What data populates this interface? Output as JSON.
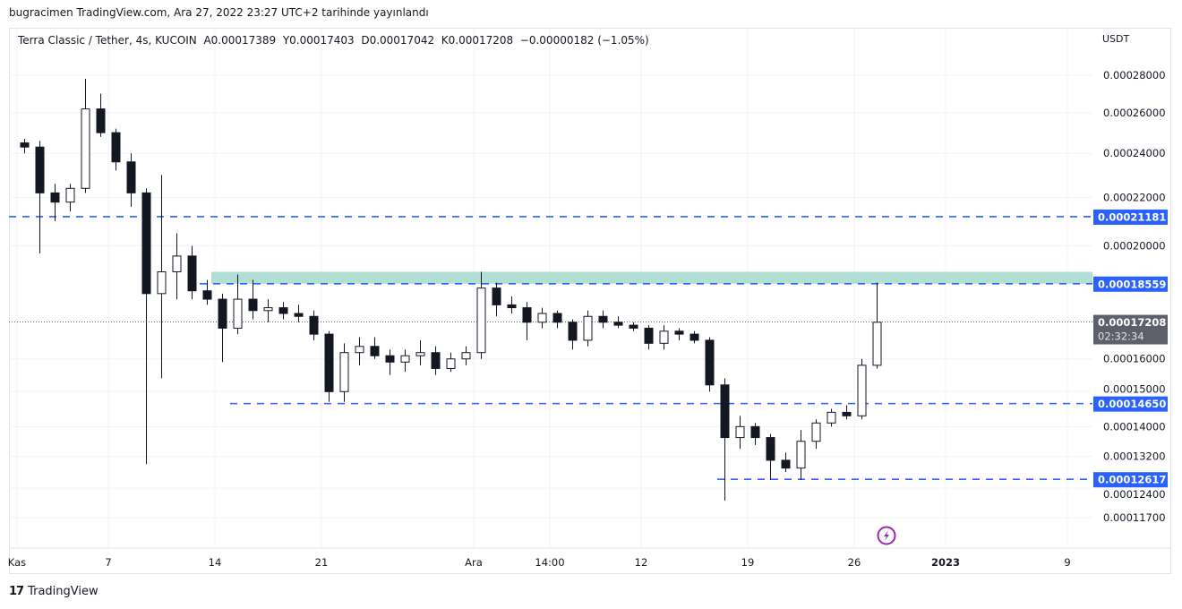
{
  "publish_note": "bugracimen TradingView.com, Ara 27, 2022 23:27 UTC+2 tarihinde yayınlandı",
  "legend": {
    "symbol": "Terra Classic / Tether, 4s, KUCOIN",
    "open": "A0.00017389",
    "high": "Y0.00017403",
    "low": "D0.00017042",
    "close": "K0.00017208",
    "change": "−0.00000182 (−1.05%)"
  },
  "footer": {
    "brand": "TradingView"
  },
  "colors": {
    "line": "#2962ff",
    "zone": "#b2dfd4",
    "price_tag": "#5d606b",
    "candle": "#131722",
    "alert_icon": "#9c27b0"
  },
  "chart_data": {
    "type": "candlestick",
    "scale": "log",
    "unit": "USDT",
    "ylim": [
      0.000113,
      0.000315
    ],
    "grid": true,
    "y_ticks": [
      "0.00028000",
      "0.00026000",
      "0.00024000",
      "0.00022000",
      "0.00020000",
      "0.00016000",
      "0.00015000",
      "0.00014000",
      "0.00013200",
      "0.00012400",
      "0.00011700"
    ],
    "x_ticks": [
      {
        "label": "Kas",
        "date": "2022-11-01"
      },
      {
        "label": "7",
        "date": "2022-11-07"
      },
      {
        "label": "14",
        "date": "2022-11-14"
      },
      {
        "label": "21",
        "date": "2022-11-21"
      },
      {
        "label": "Ara",
        "date": "2022-12-01"
      },
      {
        "label": "14:00",
        "date": "2022-12-06"
      },
      {
        "label": "12",
        "date": "2022-12-12"
      },
      {
        "label": "19",
        "date": "2022-12-19"
      },
      {
        "label": "26",
        "date": "2022-12-26"
      },
      {
        "label": "2023",
        "date": "2023-01-01"
      },
      {
        "label": "9",
        "date": "2023-01-09"
      }
    ],
    "candles_start": "2022-11-01",
    "candles_ohlc": [
      [
        0.000245,
        0.000247,
        0.00024,
        0.000243
      ],
      [
        0.000243,
        0.000246,
        0.000197,
        0.000222
      ],
      [
        0.000222,
        0.000226,
        0.00021,
        0.000218
      ],
      [
        0.000218,
        0.000226,
        0.000214,
        0.000224
      ],
      [
        0.000224,
        0.000278,
        0.000222,
        0.000262
      ],
      [
        0.000262,
        0.00027,
        0.000248,
        0.00025
      ],
      [
        0.00025,
        0.000252,
        0.000232,
        0.000236
      ],
      [
        0.000236,
        0.00024,
        0.000216,
        0.000222
      ],
      [
        0.000222,
        0.000224,
        0.00013,
        0.000182
      ],
      [
        0.000182,
        0.00023,
        0.000154,
        0.00019
      ],
      [
        0.00019,
        0.000205,
        0.00018,
        0.000196
      ],
      [
        0.000196,
        0.0002,
        0.00018,
        0.000183
      ],
      [
        0.000183,
        0.000187,
        0.000178,
        0.00018
      ],
      [
        0.00018,
        0.000182,
        0.000159,
        0.00017
      ],
      [
        0.00017,
        0.000189,
        0.000168,
        0.00018
      ],
      [
        0.00018,
        0.000187,
        0.000173,
        0.000176
      ],
      [
        0.000176,
        0.00018,
        0.000172,
        0.000177
      ],
      [
        0.000177,
        0.000179,
        0.000173,
        0.000175
      ],
      [
        0.000175,
        0.000178,
        0.000172,
        0.000174
      ],
      [
        0.000174,
        0.000176,
        0.000166,
        0.000168
      ],
      [
        0.000168,
        0.000169,
        0.000147,
        0.00015
      ],
      [
        0.00015,
        0.000165,
        0.000147,
        0.000162
      ],
      [
        0.000162,
        0.000167,
        0.000158,
        0.000164
      ],
      [
        0.000164,
        0.000167,
        0.00016,
        0.000161
      ],
      [
        0.000161,
        0.000163,
        0.000155,
        0.000159
      ],
      [
        0.000159,
        0.000163,
        0.000156,
        0.000161
      ],
      [
        0.000161,
        0.000166,
        0.000158,
        0.000162
      ],
      [
        0.000162,
        0.000164,
        0.000155,
        0.000157
      ],
      [
        0.000157,
        0.000162,
        0.000156,
        0.00016
      ],
      [
        0.00016,
        0.000164,
        0.000158,
        0.000162
      ],
      [
        0.000162,
        0.00019,
        0.00016,
        0.000184
      ],
      [
        0.000184,
        0.000186,
        0.000174,
        0.000178
      ],
      [
        0.000178,
        0.000181,
        0.000175,
        0.000177
      ],
      [
        0.000177,
        0.000179,
        0.000166,
        0.000172
      ],
      [
        0.000172,
        0.000177,
        0.00017,
        0.000175
      ],
      [
        0.000175,
        0.000176,
        0.00017,
        0.000172
      ],
      [
        0.000172,
        0.000173,
        0.000163,
        0.000166
      ],
      [
        0.000166,
        0.000176,
        0.000164,
        0.000174
      ],
      [
        0.000174,
        0.000176,
        0.00017,
        0.000172
      ],
      [
        0.000172,
        0.000174,
        0.00017,
        0.000171
      ],
      [
        0.000171,
        0.000172,
        0.000169,
        0.00017
      ],
      [
        0.00017,
        0.000171,
        0.000163,
        0.000165
      ],
      [
        0.000165,
        0.000171,
        0.000163,
        0.000169
      ],
      [
        0.000169,
        0.00017,
        0.000166,
        0.000168
      ],
      [
        0.000168,
        0.000169,
        0.000165,
        0.000166
      ],
      [
        0.000166,
        0.000167,
        0.00015,
        0.000152
      ],
      [
        0.000152,
        0.000154,
        0.000121,
        0.000137
      ],
      [
        0.000137,
        0.000143,
        0.000134,
        0.00014
      ],
      [
        0.00014,
        0.000141,
        0.000135,
        0.000137
      ],
      [
        0.000137,
        0.000138,
        0.000126,
        0.000131
      ],
      [
        0.000131,
        0.000133,
        0.000128,
        0.000129
      ],
      [
        0.000129,
        0.000139,
        0.000126,
        0.000136
      ],
      [
        0.000136,
        0.000142,
        0.000134,
        0.000141
      ],
      [
        0.000141,
        0.000145,
        0.00014,
        0.000144
      ],
      [
        0.000144,
        0.000146,
        0.000142,
        0.000143
      ],
      [
        0.000143,
        0.00016,
        0.000142,
        0.000158
      ],
      [
        0.000158,
        0.000186,
        0.000157,
        0.000172
      ]
    ],
    "horizontal_lines": [
      {
        "price": 0.00021181,
        "label": "0.00021181",
        "from": "2022-10-31"
      },
      {
        "price": 0.00018559,
        "label": "0.00018559",
        "from": "2022-11-13"
      },
      {
        "price": 0.0001465,
        "label": "0.00014650",
        "from": "2022-11-15"
      },
      {
        "price": 0.00012617,
        "label": "0.00012617",
        "from": "2022-12-17"
      }
    ],
    "zone": {
      "top": 0.00019,
      "bottom": 0.00018559,
      "from": "2022-11-14"
    },
    "last_price": {
      "label": "0.00017208",
      "countdown": "02:32:34"
    }
  }
}
